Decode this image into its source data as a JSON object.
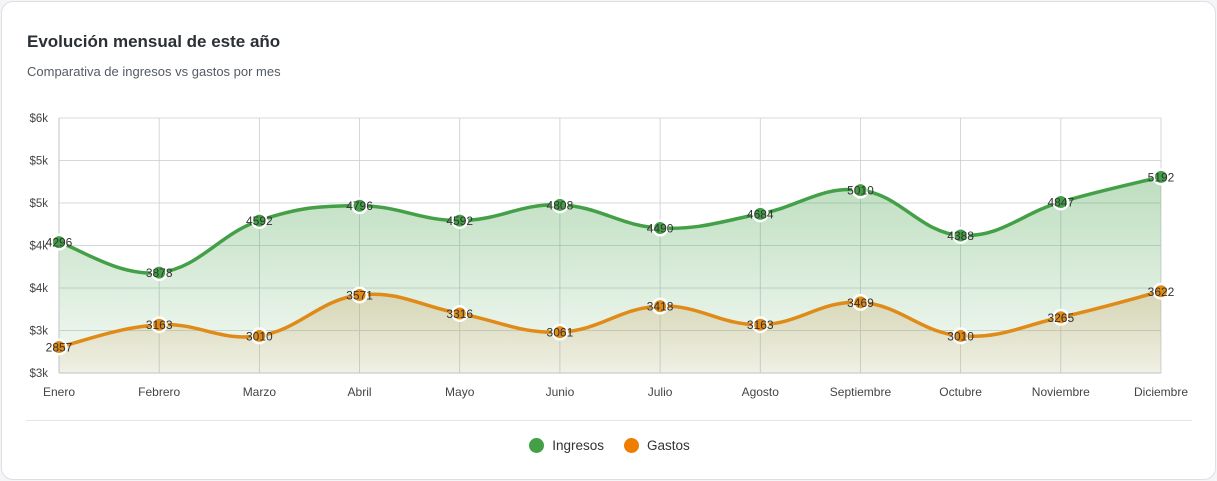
{
  "card": {
    "title": "Evolución mensual de este año",
    "subtitle": "Comparativa de ingresos vs gastos por mes"
  },
  "chart_data": {
    "type": "area",
    "categories": [
      "Enero",
      "Febrero",
      "Marzo",
      "Abril",
      "Mayo",
      "Junio",
      "Julio",
      "Agosto",
      "Septiembre",
      "Octubre",
      "Noviembre",
      "Diciembre"
    ],
    "y_tick_labels": [
      "$3k",
      "$3k",
      "$4k",
      "$4k",
      "$5k",
      "$5k",
      "$6k"
    ],
    "ylim": [
      2500,
      6000
    ],
    "grid": true,
    "legend_position": "bottom",
    "series": [
      {
        "name": "Ingresos",
        "color": "#43a047",
        "values": [
          4296,
          3878,
          4592,
          4796,
          4592,
          4808,
          4490,
          4684,
          5010,
          4388,
          4847,
          5192
        ],
        "labels": [
          "4296",
          "3878",
          "4592",
          "4796",
          "4592",
          "4808",
          "4490",
          "4684",
          "5010",
          "4388",
          "4847",
          "5192"
        ]
      },
      {
        "name": "Gastos",
        "color": "#e88a1a",
        "values": [
          2857,
          3163,
          3010,
          3571,
          3316,
          3061,
          3418,
          3163,
          3469,
          3010,
          3265,
          3622
        ],
        "labels": [
          "2857",
          "3163",
          "3010",
          "3571",
          "3316",
          "3061",
          "3418",
          "3163",
          "3469",
          "3010",
          "3265",
          "3622"
        ]
      }
    ]
  },
  "legend": {
    "items": [
      {
        "label": "Ingresos",
        "color": "#43a047"
      },
      {
        "label": "Gastos",
        "color": "#e88a1a"
      }
    ]
  }
}
